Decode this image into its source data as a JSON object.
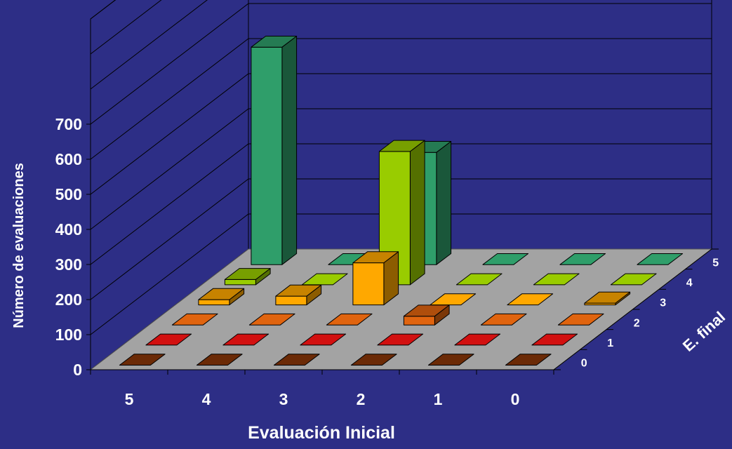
{
  "chart_data": {
    "type": "bar",
    "subtype": "3d-column",
    "title": "",
    "xlabel": "Evaluación Inicial",
    "ylabel": "Número de evaluaciones",
    "zlabel": "E. final",
    "x_categories": [
      "5",
      "4",
      "3",
      "2",
      "1",
      "0"
    ],
    "y_ticks": [
      "0",
      "100",
      "200",
      "300",
      "400",
      "500",
      "600",
      "700"
    ],
    "ylim": [
      0,
      700
    ],
    "grid": true,
    "series": [
      {
        "name": "0",
        "color": "#6b2a06",
        "values": [
          0,
          0,
          0,
          0,
          0,
          0
        ]
      },
      {
        "name": "1",
        "color": "#d21010",
        "values": [
          0,
          0,
          0,
          0,
          0,
          0
        ]
      },
      {
        "name": "2",
        "color": "#e0640f",
        "values": [
          0,
          0,
          0,
          25,
          0,
          0
        ]
      },
      {
        "name": "3",
        "color": "#ffa800",
        "values": [
          15,
          25,
          120,
          0,
          0,
          5
        ]
      },
      {
        "name": "4",
        "color": "#99cc00",
        "values": [
          15,
          0,
          380,
          0,
          0,
          0
        ]
      },
      {
        "name": "5",
        "color": "#2f9e6a",
        "values": [
          620,
          0,
          320,
          0,
          0,
          0
        ]
      }
    ]
  },
  "colors": {
    "background": "#2d2e86",
    "floor": "#a3a3a3",
    "text": "#ffffff"
  }
}
